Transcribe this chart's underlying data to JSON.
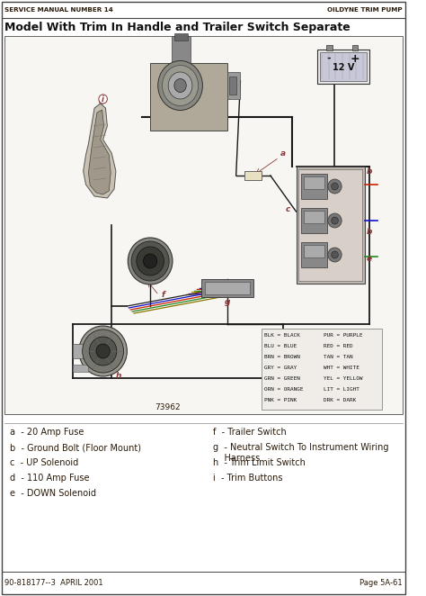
{
  "page_title_left": "SERVICE MANUAL NUMBER 14",
  "page_title_right": "OILDYNE TRIM PUMP",
  "main_title": "Model With Trim In Handle and Trailer Switch Separate",
  "footer_left": "90-818177--3  APRIL 2001",
  "footer_right": "Page 5A-61",
  "figure_number": "73962",
  "bg_color": "#ffffff",
  "text_color": "#2a1a0a",
  "diagram_bg": "#ffffff",
  "header_line_color": "#555555",
  "footer_line_color": "#555555",
  "wire_color": "#1a1a1a",
  "label_color": "#8B3A3A",
  "color_legend_left": [
    "BLK = BLACK",
    "BLU = BLUE",
    "BRN = BROWN",
    "GRY = GRAY",
    "GRN = GREEN",
    "ORN = ORANGE",
    "PNK = PINK"
  ],
  "color_legend_right": [
    "PUR = PURPLE",
    "RED = RED",
    "TAN = TAN",
    "WHT = WHITE",
    "YEL = YELLOW",
    "LIT = LIGHT",
    "DRK = DARK"
  ],
  "legend_left": [
    [
      "a",
      "20 Amp Fuse"
    ],
    [
      "b",
      "Ground Bolt (Floor Mount)"
    ],
    [
      "c",
      "UP Solenoid"
    ],
    [
      "d",
      "110 Amp Fuse"
    ],
    [
      "e",
      "DOWN Solenoid"
    ]
  ],
  "legend_right": [
    [
      "f",
      "Trailer Switch"
    ],
    [
      "g",
      "Neutral Switch To Instrument Wiring\n    Harness"
    ],
    [
      "h",
      "Trim Limit Switch"
    ],
    [
      "i",
      "Trim Buttons"
    ]
  ]
}
